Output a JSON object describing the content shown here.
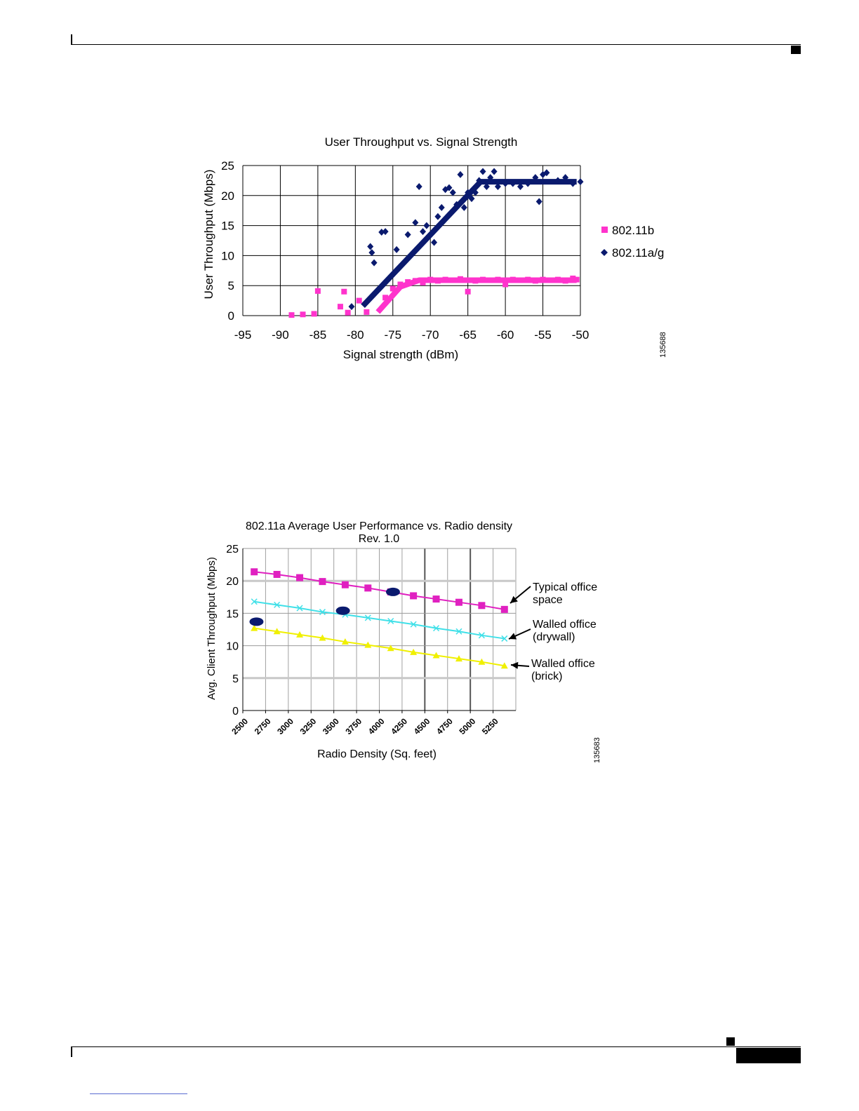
{
  "page": {
    "accent_color": "#000000"
  },
  "chart_data": [
    {
      "type": "scatter",
      "title": "User Throughput vs. Signal Strength",
      "xlabel": "Signal strength (dBm)",
      "ylabel": "User Throughput (Mbps)",
      "xlim": [
        -95,
        -50
      ],
      "ylim": [
        0,
        25
      ],
      "xticks": [
        -95,
        -90,
        -85,
        -80,
        -75,
        -70,
        -65,
        -60,
        -55,
        -50
      ],
      "yticks": [
        0,
        5,
        10,
        15,
        20,
        25
      ],
      "grid": true,
      "legend_position": "right",
      "figure_id": "135688",
      "series": [
        {
          "name": "802.11b",
          "color": "#ff33cc",
          "marker": "square",
          "points": [
            [
              -88.5,
              0.1
            ],
            [
              -87,
              0.2
            ],
            [
              -85.5,
              0.3
            ],
            [
              -85,
              4.1
            ],
            [
              -82,
              1.5
            ],
            [
              -81.5,
              4.0
            ],
            [
              -81,
              0.5
            ],
            [
              -79.5,
              2.5
            ],
            [
              -78.5,
              0.6
            ],
            [
              -76,
              3.0
            ],
            [
              -75,
              4.5
            ],
            [
              -74,
              5.2
            ],
            [
              -73,
              5.6
            ],
            [
              -72,
              5.8
            ],
            [
              -71,
              5.5
            ],
            [
              -70,
              6.0
            ],
            [
              -69,
              5.8
            ],
            [
              -68,
              6.0
            ],
            [
              -67,
              5.9
            ],
            [
              -66,
              6.1
            ],
            [
              -65,
              4.0
            ],
            [
              -64,
              5.8
            ],
            [
              -63,
              6.0
            ],
            [
              -62,
              5.9
            ],
            [
              -61,
              6.0
            ],
            [
              -60,
              5.2
            ],
            [
              -59,
              6.0
            ],
            [
              -58,
              5.9
            ],
            [
              -57,
              6.0
            ],
            [
              -56,
              5.8
            ],
            [
              -55,
              6.0
            ],
            [
              -54,
              5.9
            ],
            [
              -53,
              6.0
            ],
            [
              -52,
              5.8
            ],
            [
              -51,
              6.2
            ],
            [
              -50.5,
              6.0
            ]
          ],
          "trend": [
            [
              -77,
              0.6
            ],
            [
              -74,
              4.8
            ],
            [
              -71.5,
              5.9
            ],
            [
              -50.5,
              5.9
            ]
          ]
        },
        {
          "name": "802.11a/g",
          "color": "#0a1a6e",
          "marker": "diamond",
          "points": [
            [
              -80.5,
              1.5
            ],
            [
              -78,
              11.5
            ],
            [
              -77.5,
              8.8
            ],
            [
              -77.8,
              10.5
            ],
            [
              -76.5,
              13.9
            ],
            [
              -76,
              14.0
            ],
            [
              -74.5,
              11.0
            ],
            [
              -73,
              13.5
            ],
            [
              -72,
              15.5
            ],
            [
              -71.5,
              21.5
            ],
            [
              -71,
              14.0
            ],
            [
              -70.5,
              15.0
            ],
            [
              -69.5,
              12.2
            ],
            [
              -69,
              16.5
            ],
            [
              -68.5,
              18.0
            ],
            [
              -68,
              21.0
            ],
            [
              -67.5,
              21.3
            ],
            [
              -67,
              20.5
            ],
            [
              -66.5,
              18.5
            ],
            [
              -66,
              23.5
            ],
            [
              -65.5,
              18.0
            ],
            [
              -65,
              20.5
            ],
            [
              -64.5,
              19.5
            ],
            [
              -64,
              20.5
            ],
            [
              -63.5,
              22.5
            ],
            [
              -63,
              24.0
            ],
            [
              -62.5,
              21.5
            ],
            [
              -62,
              23.0
            ],
            [
              -61.5,
              24.0
            ],
            [
              -61,
              21.5
            ],
            [
              -60,
              22.0
            ],
            [
              -59,
              22.0
            ],
            [
              -58,
              21.5
            ],
            [
              -57,
              22.0
            ],
            [
              -56,
              23.0
            ],
            [
              -55.5,
              19.0
            ],
            [
              -55,
              23.5
            ],
            [
              -54.5,
              23.8
            ],
            [
              -53,
              22.5
            ],
            [
              -52,
              23.0
            ],
            [
              -51,
              22.0
            ],
            [
              -50,
              22.3
            ]
          ],
          "trend": [
            [
              -79,
              1.6
            ],
            [
              -63.3,
              22.3
            ],
            [
              -50.5,
              22.3
            ]
          ]
        }
      ]
    },
    {
      "type": "line",
      "title": "802.11a Average User Performance vs. Radio density",
      "subtitle": "Rev. 1.0",
      "xlabel": "Radio Density (Sq. feet)",
      "ylabel": "Avg. Client Throughput (Mbps)",
      "categories": [
        "2500",
        "2750",
        "3000",
        "3250",
        "3500",
        "3750",
        "4000",
        "4250",
        "4500",
        "4750",
        "5000",
        "5250"
      ],
      "xlim": [
        2500,
        5500
      ],
      "ylim": [
        0,
        25
      ],
      "yticks": [
        0,
        5,
        10,
        15,
        20,
        25
      ],
      "grid": true,
      "figure_id": "135683",
      "series": [
        {
          "name": "Typical office\nspace",
          "color": "#e020c0",
          "marker": "square",
          "x": [
            2625,
            2875,
            3125,
            3375,
            3625,
            3875,
            4125,
            4375,
            4625,
            4875,
            5125,
            5375
          ],
          "values": [
            21.4,
            21.0,
            20.5,
            19.9,
            19.4,
            18.9,
            18.3,
            17.7,
            17.2,
            16.7,
            16.2,
            15.6
          ]
        },
        {
          "name": "Walled office\n(drywall)",
          "color": "#40e0e8",
          "marker": "x",
          "x": [
            2625,
            2875,
            3125,
            3375,
            3625,
            3875,
            4125,
            4375,
            4625,
            4875,
            5125,
            5375
          ],
          "values": [
            16.8,
            16.3,
            15.8,
            15.2,
            14.8,
            14.3,
            13.8,
            13.3,
            12.7,
            12.2,
            11.6,
            11.1
          ]
        },
        {
          "name": "Walled office\n(brick)",
          "color": "#f0f000",
          "marker": "triangle",
          "x": [
            2625,
            2875,
            3125,
            3375,
            3625,
            3875,
            4125,
            4375,
            4625,
            4875,
            5125,
            5375
          ],
          "values": [
            12.7,
            12.2,
            11.7,
            11.2,
            10.6,
            10.1,
            9.6,
            9.0,
            8.5,
            8.0,
            7.5,
            6.9
          ]
        },
        {
          "name": "",
          "color": "#0a1a6e",
          "marker": "ellipse",
          "x": [
            2650,
            3600,
            4150
          ],
          "values": [
            13.7,
            15.4,
            18.3
          ]
        }
      ]
    }
  ]
}
